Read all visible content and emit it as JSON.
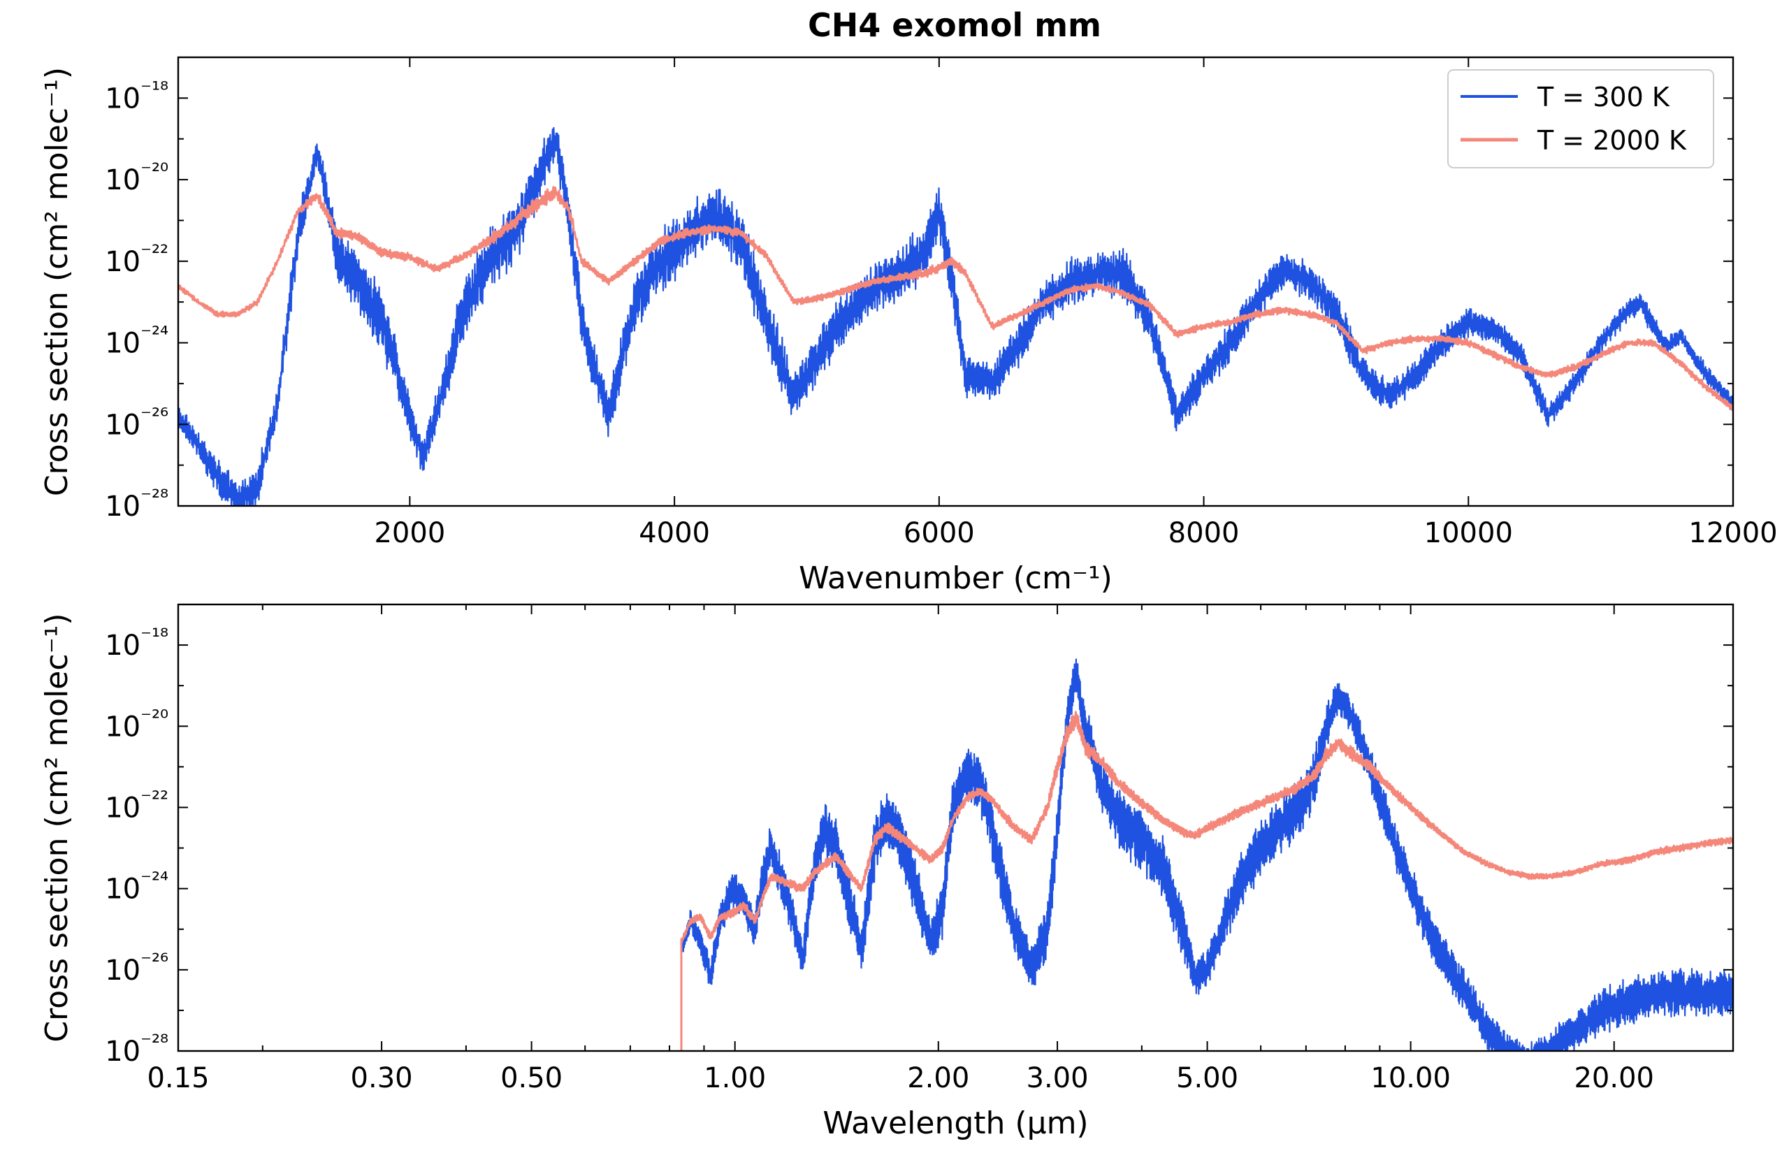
{
  "title": "CH4 exomol mm",
  "colors": {
    "t300": "#1f52e0",
    "t2000": "#f4877a"
  },
  "legend": {
    "placement": "top-right",
    "entries": [
      "T = 300 K",
      "T = 2000 K"
    ]
  },
  "chart_data": [
    {
      "type": "line",
      "title": "CH4 exomol mm",
      "xlabel": "Wavenumber (cm⁻¹)",
      "ylabel": "Cross section (cm² molec⁻¹)",
      "xscale": "linear",
      "yscale": "log",
      "xlim": [
        250,
        12000
      ],
      "ylim": [
        1e-28,
        1e-17
      ],
      "xticks": [
        2000,
        4000,
        6000,
        8000,
        10000,
        12000
      ],
      "xtick_labels": [
        "2000",
        "4000",
        "6000",
        "8000",
        "10000",
        "12000"
      ],
      "yticks": [
        -28,
        -26,
        -24,
        -22,
        -20,
        -18
      ],
      "ytick_labels": [
        "10⁻²⁸",
        "10⁻²⁶",
        "10⁻²⁴",
        "10⁻²²",
        "10⁻²⁰",
        "10⁻¹⁸"
      ],
      "legend": "top-right",
      "series": [
        {
          "name": "T = 300 K",
          "x": [
            250,
            400,
            550,
            700,
            850,
            1000,
            1150,
            1300,
            1450,
            1600,
            1800,
            2000,
            2100,
            2200,
            2400,
            2600,
            2800,
            3000,
            3100,
            3200,
            3300,
            3500,
            3700,
            3900,
            4100,
            4300,
            4500,
            4700,
            4900,
            5100,
            5300,
            5500,
            5700,
            5900,
            6000,
            6100,
            6200,
            6400,
            6600,
            6800,
            7000,
            7200,
            7400,
            7600,
            7800,
            8000,
            8200,
            8400,
            8600,
            8800,
            9000,
            9200,
            9400,
            9600,
            9800,
            10000,
            10200,
            10400,
            10600,
            10800,
            11000,
            11200,
            11300,
            11400,
            11500,
            11600,
            11800,
            12000
          ],
          "log10_y_center": [
            -25.8,
            -26.5,
            -27.3,
            -27.9,
            -27.5,
            -25.5,
            -21.5,
            -19.3,
            -21.8,
            -22.5,
            -23.5,
            -25.8,
            -26.8,
            -25.8,
            -23.2,
            -22.0,
            -21.2,
            -19.8,
            -19.0,
            -20.8,
            -23.5,
            -25.8,
            -23.0,
            -22.0,
            -21.4,
            -20.8,
            -21.5,
            -23.5,
            -25.3,
            -24.3,
            -23.3,
            -22.7,
            -22.3,
            -21.7,
            -20.8,
            -22.5,
            -24.8,
            -25.0,
            -24.0,
            -23.0,
            -22.5,
            -22.3,
            -22.3,
            -23.5,
            -25.8,
            -24.8,
            -24.0,
            -23.0,
            -22.2,
            -22.5,
            -23.2,
            -24.8,
            -25.3,
            -24.8,
            -24.0,
            -23.5,
            -23.7,
            -24.3,
            -25.8,
            -25.0,
            -24.0,
            -23.2,
            -23.0,
            -23.6,
            -24.1,
            -23.8,
            -24.8,
            -25.5
          ],
          "log10_y_spread": [
            0.6,
            0.6,
            0.8,
            0.8,
            0.8,
            0.8,
            1.0,
            0.8,
            1.2,
            1.4,
            1.4,
            1.0,
            0.8,
            1.0,
            1.4,
            1.4,
            1.4,
            1.2,
            1.0,
            1.2,
            1.2,
            1.0,
            1.4,
            1.4,
            1.4,
            1.2,
            1.4,
            1.4,
            1.0,
            1.2,
            1.2,
            1.2,
            1.2,
            1.3,
            1.3,
            1.2,
            1.0,
            0.8,
            1.0,
            1.0,
            1.0,
            1.0,
            1.1,
            1.0,
            0.8,
            0.8,
            0.9,
            0.9,
            0.8,
            0.8,
            0.9,
            0.8,
            0.7,
            0.7,
            0.7,
            0.6,
            0.6,
            0.6,
            0.5,
            0.5,
            0.5,
            0.5,
            0.5,
            0.5,
            0.4,
            0.4,
            0.4,
            0.4
          ]
        },
        {
          "name": "T = 2000 K",
          "x": [
            250,
            400,
            550,
            700,
            850,
            1000,
            1150,
            1300,
            1450,
            1600,
            1800,
            2000,
            2200,
            2400,
            2600,
            2800,
            3000,
            3100,
            3200,
            3300,
            3500,
            3700,
            3900,
            4100,
            4300,
            4500,
            4700,
            4900,
            5100,
            5300,
            5500,
            5700,
            5900,
            6100,
            6200,
            6400,
            6600,
            6800,
            7000,
            7200,
            7400,
            7600,
            7800,
            8000,
            8200,
            8400,
            8600,
            8800,
            9000,
            9200,
            9400,
            9600,
            9800,
            10000,
            10200,
            10400,
            10600,
            10800,
            11000,
            11200,
            11400,
            11600,
            11800,
            12000
          ],
          "log10_y_center": [
            -22.6,
            -23.0,
            -23.3,
            -23.3,
            -23.0,
            -22.0,
            -20.8,
            -20.4,
            -21.3,
            -21.4,
            -21.8,
            -21.9,
            -22.2,
            -21.9,
            -21.5,
            -21.0,
            -20.5,
            -20.3,
            -20.7,
            -22.0,
            -22.5,
            -22.0,
            -21.5,
            -21.3,
            -21.2,
            -21.3,
            -21.9,
            -23.0,
            -22.9,
            -22.7,
            -22.5,
            -22.4,
            -22.3,
            -22.0,
            -22.3,
            -23.6,
            -23.3,
            -23.0,
            -22.7,
            -22.6,
            -22.8,
            -23.1,
            -23.8,
            -23.6,
            -23.5,
            -23.3,
            -23.2,
            -23.3,
            -23.5,
            -24.2,
            -24.0,
            -23.9,
            -23.9,
            -24.0,
            -24.3,
            -24.6,
            -24.8,
            -24.6,
            -24.3,
            -24.0,
            -24.0,
            -24.5,
            -25.1,
            -25.6
          ],
          "log10_y_spread": [
            0.12,
            0.12,
            0.12,
            0.12,
            0.12,
            0.15,
            0.2,
            0.25,
            0.22,
            0.2,
            0.2,
            0.2,
            0.18,
            0.2,
            0.25,
            0.3,
            0.35,
            0.35,
            0.3,
            0.2,
            0.15,
            0.18,
            0.2,
            0.2,
            0.2,
            0.2,
            0.18,
            0.15,
            0.15,
            0.15,
            0.15,
            0.18,
            0.2,
            0.2,
            0.18,
            0.15,
            0.15,
            0.15,
            0.15,
            0.15,
            0.15,
            0.15,
            0.15,
            0.15,
            0.15,
            0.15,
            0.15,
            0.15,
            0.15,
            0.15,
            0.15,
            0.15,
            0.15,
            0.15,
            0.15,
            0.15,
            0.15,
            0.15,
            0.15,
            0.15,
            0.15,
            0.15,
            0.15,
            0.15
          ]
        }
      ]
    },
    {
      "type": "line",
      "title": "",
      "xlabel": "Wavelength (µm)",
      "ylabel": "Cross section (cm² molec⁻¹)",
      "xscale": "log",
      "yscale": "log",
      "xlim": [
        0.15,
        30
      ],
      "ylim": [
        1e-28,
        1e-17
      ],
      "xticks": [
        0.15,
        0.3,
        0.5,
        1.0,
        2.0,
        3.0,
        5.0,
        10.0,
        20.0
      ],
      "xtick_labels": [
        "0.15",
        "0.30",
        "0.50",
        "1.00",
        "2.00",
        "3.00",
        "5.00",
        "10.00",
        "20.00"
      ],
      "yticks": [
        -28,
        -26,
        -24,
        -22,
        -20,
        -18
      ],
      "ytick_labels": [
        "10⁻²⁸",
        "10⁻²⁶",
        "10⁻²⁴",
        "10⁻²²",
        "10⁻²⁰",
        "10⁻¹⁸"
      ],
      "series": [
        {
          "name": "T = 300 K",
          "x": [
            0.833,
            0.86,
            0.89,
            0.92,
            0.95,
            0.99,
            1.03,
            1.07,
            1.1,
            1.13,
            1.17,
            1.21,
            1.26,
            1.31,
            1.36,
            1.41,
            1.47,
            1.54,
            1.61,
            1.67,
            1.72,
            1.78,
            1.85,
            1.95,
            2.03,
            2.1,
            2.2,
            2.3,
            2.4,
            2.5,
            2.6,
            2.75,
            2.9,
            3.0,
            3.1,
            3.2,
            3.3,
            3.5,
            3.7,
            4.0,
            4.3,
            4.6,
            4.8,
            5.0,
            5.3,
            5.6,
            6.0,
            6.4,
            6.8,
            7.2,
            7.5,
            7.8,
            8.2,
            8.7,
            9.3,
            10.0,
            11.0,
            12.0,
            13.0,
            14.0,
            15.0,
            16.0,
            17.5,
            19.0,
            21.0,
            23.0,
            25.0,
            27.0,
            30.0
          ],
          "log10_y_center": [
            -25.5,
            -24.8,
            -25.3,
            -26.2,
            -24.8,
            -24.0,
            -24.3,
            -25.0,
            -23.8,
            -23.0,
            -23.8,
            -24.5,
            -25.8,
            -23.5,
            -22.5,
            -23.0,
            -24.2,
            -25.5,
            -23.0,
            -22.3,
            -22.5,
            -23.0,
            -24.0,
            -25.3,
            -24.5,
            -22.0,
            -21.2,
            -21.3,
            -22.5,
            -24.0,
            -25.0,
            -26.0,
            -25.0,
            -22.5,
            -19.8,
            -18.7,
            -20.0,
            -21.5,
            -22.3,
            -22.8,
            -23.5,
            -25.0,
            -26.2,
            -26.0,
            -24.8,
            -23.8,
            -23.0,
            -22.5,
            -22.0,
            -21.3,
            -20.0,
            -19.3,
            -19.8,
            -21.0,
            -22.5,
            -24.0,
            -25.5,
            -26.5,
            -27.5,
            -28.0,
            -28.2,
            -28.0,
            -27.5,
            -27.0,
            -26.8,
            -26.6,
            -26.5,
            -26.6,
            -26.6
          ],
          "log10_y_spread": [
            0.4,
            0.5,
            0.6,
            0.7,
            0.8,
            0.7,
            0.8,
            0.8,
            1.0,
            1.0,
            1.0,
            1.0,
            0.8,
            1.2,
            1.2,
            1.2,
            1.2,
            1.0,
            1.3,
            1.3,
            1.3,
            1.3,
            1.3,
            1.0,
            1.2,
            1.2,
            1.2,
            1.3,
            1.3,
            1.3,
            1.2,
            1.0,
            1.2,
            1.2,
            1.0,
            0.8,
            1.0,
            1.2,
            1.3,
            1.4,
            1.4,
            1.2,
            0.8,
            0.8,
            1.0,
            1.2,
            1.3,
            1.3,
            1.3,
            1.3,
            1.0,
            0.8,
            0.8,
            1.0,
            1.0,
            1.0,
            1.0,
            0.9,
            0.8,
            0.7,
            0.7,
            0.8,
            0.9,
            1.0,
            1.0,
            1.0,
            1.0,
            1.0,
            1.0
          ]
        },
        {
          "name": "T = 2000 K",
          "x": [
            0.833,
            0.86,
            0.89,
            0.92,
            0.95,
            0.99,
            1.03,
            1.07,
            1.1,
            1.13,
            1.17,
            1.21,
            1.26,
            1.31,
            1.36,
            1.41,
            1.47,
            1.54,
            1.61,
            1.67,
            1.72,
            1.78,
            1.85,
            1.95,
            2.03,
            2.1,
            2.2,
            2.3,
            2.4,
            2.5,
            2.6,
            2.75,
            2.9,
            3.0,
            3.1,
            3.2,
            3.3,
            3.5,
            3.7,
            4.0,
            4.3,
            4.6,
            4.8,
            5.0,
            5.3,
            5.6,
            6.0,
            6.4,
            6.8,
            7.2,
            7.5,
            7.8,
            8.2,
            8.7,
            9.3,
            10.0,
            11.0,
            12.0,
            13.0,
            14.0,
            15.0,
            16.0,
            17.5,
            19.0,
            21.0,
            23.0,
            25.0,
            27.0,
            30.0
          ],
          "log10_y_center": [
            -25.3,
            -24.8,
            -24.7,
            -25.2,
            -24.7,
            -24.6,
            -24.4,
            -24.8,
            -24.2,
            -23.7,
            -23.8,
            -23.9,
            -24.0,
            -23.6,
            -23.4,
            -23.2,
            -23.6,
            -24.0,
            -22.8,
            -22.5,
            -22.6,
            -22.8,
            -23.0,
            -23.3,
            -23.0,
            -22.3,
            -21.8,
            -21.6,
            -21.8,
            -22.2,
            -22.5,
            -22.8,
            -22.0,
            -21.0,
            -20.2,
            -19.8,
            -20.5,
            -20.9,
            -21.4,
            -21.9,
            -22.3,
            -22.6,
            -22.7,
            -22.5,
            -22.3,
            -22.1,
            -21.9,
            -21.7,
            -21.5,
            -21.2,
            -20.7,
            -20.4,
            -20.7,
            -21.0,
            -21.5,
            -22.0,
            -22.6,
            -23.1,
            -23.4,
            -23.6,
            -23.7,
            -23.7,
            -23.6,
            -23.4,
            -23.3,
            -23.1,
            -23.0,
            -22.9,
            -22.8
          ],
          "log10_y_spread": [
            0.12,
            0.15,
            0.15,
            0.18,
            0.2,
            0.2,
            0.2,
            0.2,
            0.2,
            0.2,
            0.2,
            0.2,
            0.2,
            0.2,
            0.2,
            0.2,
            0.2,
            0.2,
            0.25,
            0.25,
            0.25,
            0.2,
            0.2,
            0.2,
            0.2,
            0.2,
            0.2,
            0.2,
            0.2,
            0.2,
            0.2,
            0.2,
            0.3,
            0.35,
            0.4,
            0.4,
            0.35,
            0.3,
            0.25,
            0.2,
            0.2,
            0.2,
            0.2,
            0.2,
            0.2,
            0.2,
            0.2,
            0.2,
            0.25,
            0.3,
            0.3,
            0.3,
            0.3,
            0.25,
            0.2,
            0.2,
            0.15,
            0.12,
            0.12,
            0.12,
            0.12,
            0.12,
            0.12,
            0.12,
            0.15,
            0.15,
            0.15,
            0.15,
            0.15
          ]
        }
      ]
    }
  ]
}
